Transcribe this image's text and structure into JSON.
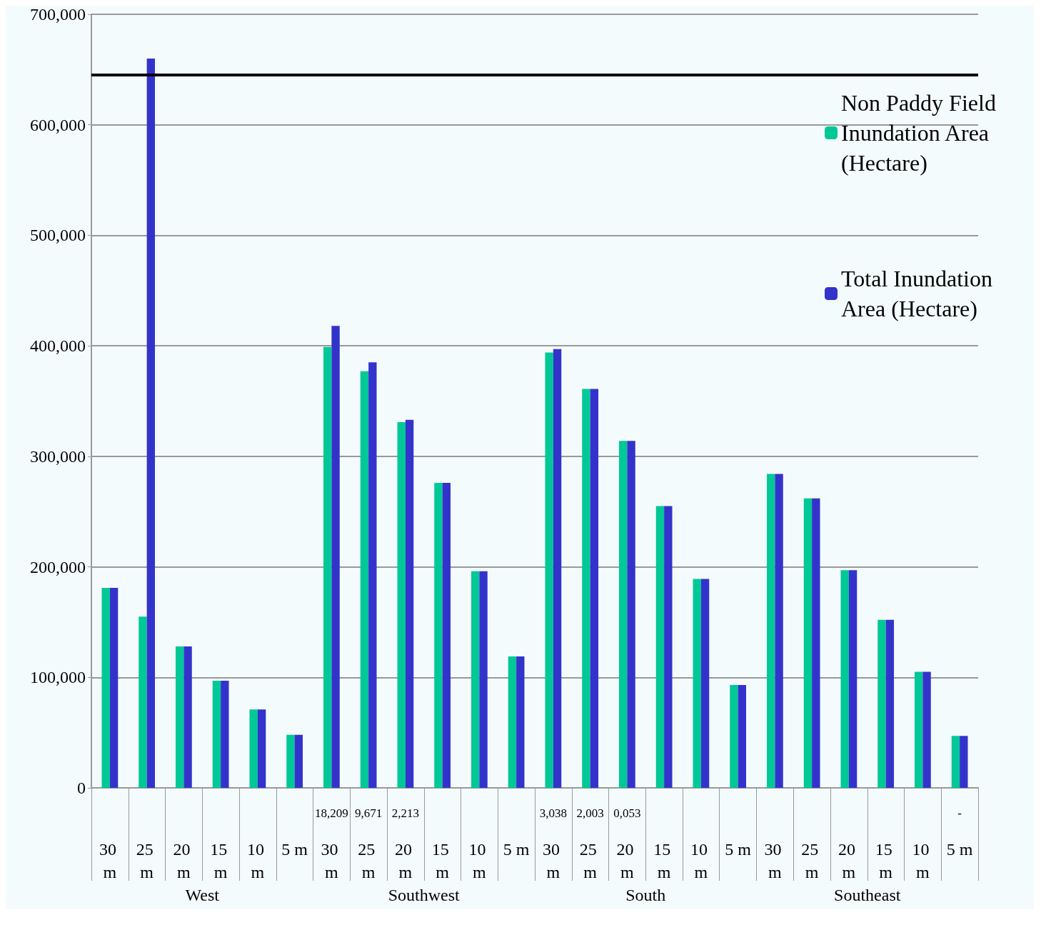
{
  "chart_data": {
    "type": "bar",
    "categories": [
      "30 m",
      "25 m",
      "20 m",
      "15 m",
      "10 m",
      "5 m",
      "30 m",
      "25 m",
      "20 m",
      "15 m",
      "10 m",
      "5 m",
      "30 m",
      "25 m",
      "20 m",
      "15 m",
      "10 m",
      "5 m",
      "30 m",
      "25 m",
      "20 m",
      "15 m",
      "10 m",
      "5 m"
    ],
    "series": [
      {
        "name": "Non Paddy Field Inundation Area (Hectare)",
        "color": "#00c896",
        "values": [
          181000,
          155000,
          128000,
          97000,
          71000,
          48000,
          399000,
          377000,
          331000,
          276000,
          196000,
          119000,
          394000,
          361000,
          314000,
          255000,
          189000,
          93000,
          284000,
          262000,
          197000,
          152000,
          105000,
          47000
        ]
      },
      {
        "name": "Total Inundation Area (Hectare)",
        "color": "#3333cc",
        "values": [
          181000,
          660000,
          128000,
          97000,
          71000,
          48000,
          418000,
          385000,
          333000,
          276000,
          196000,
          119000,
          397000,
          361000,
          314000,
          255000,
          189000,
          93000,
          284000,
          262000,
          197000,
          152000,
          105000,
          47000
        ]
      }
    ],
    "ylim": [
      0,
      700000
    ],
    "yticks": [
      0,
      {
        "value": 100000,
        "label": "100,000"
      },
      {
        "value": 200000,
        "label": "200,000"
      },
      {
        "value": 300000,
        "label": "300,000"
      },
      {
        "value": 400000,
        "label": "400,000"
      },
      {
        "value": 500000,
        "label": "500,000"
      },
      {
        "value": 600000,
        "label": "600,000"
      },
      {
        "value": 700000,
        "label": "700,000"
      }
    ],
    "grid": "y",
    "legend": "top right",
    "ref_lines": [
      {
        "axis": "y",
        "value": 645000,
        "color": "#000000"
      }
    ],
    "annotations": [
      "18,209",
      "9,671",
      "2,213",
      "3,038",
      "2,003",
      "0,053",
      "-",
      "West",
      "Southwest",
      "South",
      "Southeast"
    ]
  }
}
